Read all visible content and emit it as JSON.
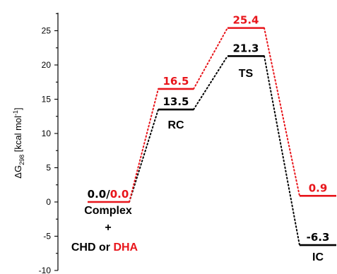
{
  "chart_data": {
    "type": "line",
    "ylabel": "ΔG298 [kcal mol-1]",
    "ylim": [
      -10,
      28
    ],
    "yticks": [
      -10,
      -5,
      0,
      5,
      10,
      15,
      20,
      25
    ],
    "grid": false,
    "legend": "none",
    "categories": [
      "Complex + CHD or DHA",
      "RC",
      "TS",
      "IC"
    ],
    "series": [
      {
        "color": "#000000",
        "values": [
          0.0,
          13.5,
          21.3,
          -6.3
        ],
        "labels": [
          "0.0",
          "13.5",
          "21.3",
          "-6.3"
        ]
      },
      {
        "color": "#e8151b",
        "values": [
          0.0,
          16.5,
          25.4,
          0.9
        ],
        "labels": [
          "0.0",
          "16.5",
          "25.4",
          "0.9"
        ]
      }
    ],
    "annotations": {
      "separator": "/",
      "state_labels": [
        "Complex",
        "+",
        "CHD or ",
        "DHA",
        "RC",
        "TS",
        "IC"
      ]
    }
  }
}
